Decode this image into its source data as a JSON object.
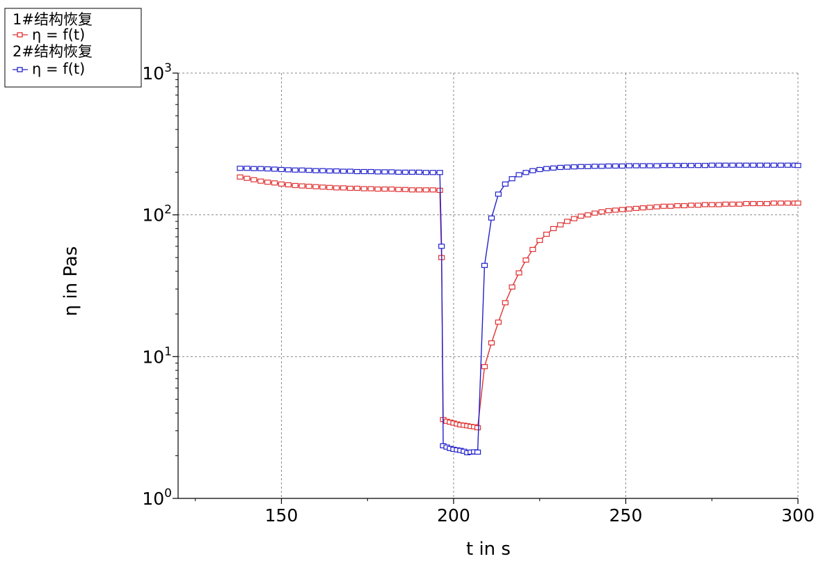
{
  "chart_data": {
    "type": "line",
    "xlabel": "t in s",
    "ylabel": "η in Pas",
    "x_scale": "linear",
    "y_scale": "log",
    "xlim": [
      120,
      300
    ],
    "ylim": [
      1,
      1000
    ],
    "x_ticks": [
      150,
      200,
      250,
      300
    ],
    "x_tick_labels": [
      "150",
      "200",
      "250",
      "300"
    ],
    "x_minor_ticks": [
      125,
      175,
      225,
      275
    ],
    "y_ticks": [
      1,
      10,
      100,
      1000
    ],
    "y_tick_labels": [
      {
        "base": "10",
        "exp": "0"
      },
      {
        "base": "10",
        "exp": "1"
      },
      {
        "base": "10",
        "exp": "2"
      },
      {
        "base": "10",
        "exp": "3"
      }
    ],
    "grid": true,
    "legend_position": "top-left",
    "series": [
      {
        "name": "1#结构恢复",
        "label": "η = f(t)",
        "color": "#e03030",
        "marker": "square",
        "x": [
          138,
          140,
          142,
          144,
          146,
          148,
          150,
          152,
          154,
          156,
          158,
          160,
          162,
          164,
          166,
          168,
          170,
          172,
          174,
          176,
          178,
          180,
          182,
          184,
          186,
          188,
          190,
          192,
          194,
          196,
          196.5,
          197,
          198,
          199,
          200,
          201,
          202,
          203,
          204,
          205,
          206,
          207,
          209,
          211,
          213,
          215,
          217,
          219,
          221,
          223,
          225,
          227,
          229,
          231,
          233,
          235,
          237,
          239,
          241,
          243,
          245,
          247,
          249,
          251,
          253,
          255,
          257,
          259,
          261,
          263,
          265,
          267,
          269,
          271,
          273,
          275,
          277,
          279,
          281,
          283,
          285,
          287,
          289,
          291,
          293,
          295,
          297,
          299,
          300
        ],
        "y": [
          185,
          181,
          177,
          173,
          170,
          168,
          165,
          163,
          161,
          160,
          159,
          158,
          157,
          156,
          155,
          155,
          154,
          154,
          153,
          153,
          152,
          152,
          152,
          151,
          151,
          150,
          150,
          150,
          150,
          149,
          50,
          3.6,
          3.5,
          3.45,
          3.4,
          3.35,
          3.3,
          3.28,
          3.25,
          3.22,
          3.2,
          3.15,
          8.5,
          12.5,
          17.5,
          24,
          31,
          39,
          48,
          57,
          66,
          73,
          80,
          85,
          90,
          94,
          98,
          100,
          103,
          105,
          107,
          108,
          109,
          110,
          111,
          112,
          113,
          114,
          115,
          115,
          116,
          116,
          117,
          117,
          118,
          118,
          118,
          119,
          119,
          119,
          120,
          120,
          120,
          120,
          121,
          121,
          121,
          121,
          121
        ]
      },
      {
        "name": "2#结构恢复",
        "label": "η = f(t)",
        "color": "#2020cc",
        "marker": "square",
        "x": [
          138,
          140,
          142,
          144,
          146,
          148,
          150,
          152,
          154,
          156,
          158,
          160,
          162,
          164,
          166,
          168,
          170,
          172,
          174,
          176,
          178,
          180,
          182,
          184,
          186,
          188,
          190,
          192,
          194,
          196,
          196.5,
          197,
          198,
          199,
          200,
          201,
          202,
          203,
          204,
          205,
          206,
          207,
          209,
          211,
          213,
          215,
          217,
          219,
          221,
          223,
          225,
          227,
          229,
          231,
          233,
          235,
          237,
          239,
          241,
          243,
          245,
          247,
          249,
          251,
          253,
          255,
          257,
          259,
          261,
          263,
          265,
          267,
          269,
          271,
          273,
          275,
          277,
          279,
          281,
          283,
          285,
          287,
          289,
          291,
          293,
          295,
          297,
          299,
          300
        ],
        "y": [
          213,
          213,
          212,
          212,
          211,
          210,
          209,
          208,
          207,
          207,
          206,
          205,
          205,
          204,
          204,
          203,
          203,
          202,
          202,
          202,
          201,
          201,
          201,
          200,
          200,
          200,
          200,
          199,
          199,
          199,
          60,
          2.35,
          2.3,
          2.25,
          2.22,
          2.2,
          2.18,
          2.15,
          2.1,
          2.12,
          2.13,
          2.12,
          44,
          95,
          140,
          165,
          180,
          192,
          199,
          205,
          209,
          212,
          214,
          216,
          217,
          218,
          219,
          219,
          220,
          220,
          221,
          221,
          221,
          222,
          222,
          222,
          222,
          222,
          223,
          223,
          223,
          223,
          223,
          223,
          223,
          224,
          224,
          224,
          224,
          224,
          224,
          224,
          224,
          224,
          224,
          224,
          224,
          224,
          223
        ]
      }
    ]
  }
}
